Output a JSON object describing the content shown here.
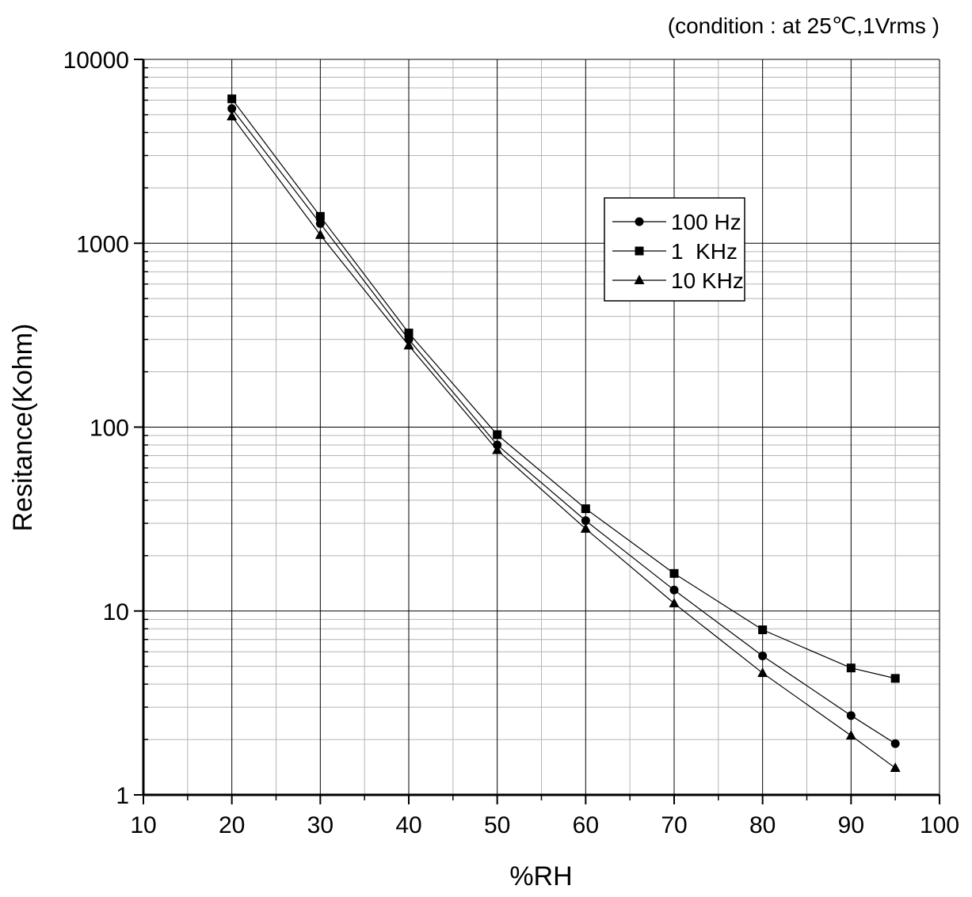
{
  "chart_data": {
    "type": "line",
    "title": "",
    "annotation": "(condition : at 25℃,1Vrms )",
    "xlabel": "%RH",
    "ylabel": "Resitance(Kohm)",
    "xlim": [
      10,
      100
    ],
    "ylim": [
      1,
      10000
    ],
    "yscale": "log",
    "grid": true,
    "x_ticks": [
      "10",
      "20",
      "30",
      "40",
      "50",
      "60",
      "70",
      "80",
      "90",
      "100"
    ],
    "y_ticks": [
      "1",
      "10",
      "100",
      "1000",
      "10000"
    ],
    "x": [
      20,
      30,
      40,
      50,
      60,
      70,
      80,
      90,
      95
    ],
    "legend_position": "upper-center-right",
    "series": [
      {
        "name": "100 Hz",
        "marker": "circle",
        "values": [
          5400,
          1280,
          300,
          80,
          31,
          13,
          5.7,
          2.7,
          1.9
        ]
      },
      {
        "name": "1  KHz",
        "marker": "square",
        "values": [
          6100,
          1400,
          325,
          91,
          36,
          16,
          7.9,
          4.9,
          4.3
        ]
      },
      {
        "name": "10 KHz",
        "marker": "triangle",
        "values": [
          4900,
          1110,
          278,
          75,
          28,
          11,
          4.6,
          2.1,
          1.4
        ]
      }
    ]
  }
}
